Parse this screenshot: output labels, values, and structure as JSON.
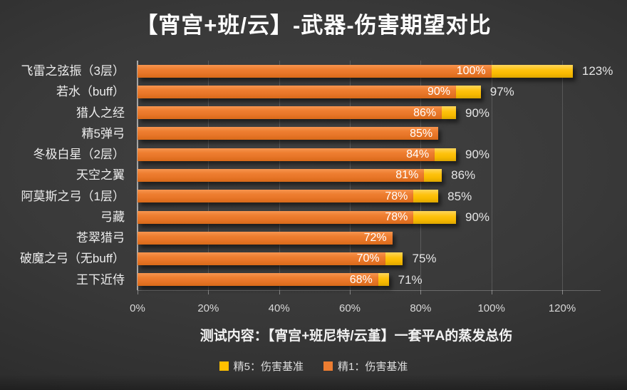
{
  "colors": {
    "orange": "#ED7D31",
    "yellow": "#FFC000"
  },
  "legend": [
    {
      "label": "精5：伤害基准",
      "color_key": "yellow"
    },
    {
      "label": "精1：伤害基准",
      "color_key": "orange"
    }
  ],
  "chart_data": {
    "type": "bar",
    "orientation": "horizontal",
    "title": "【宵宫+班/云】-武器-伤害期望对比",
    "subtitle": "测试内容：【宵宫+班尼特/云堇】一套平A的蒸发总伤",
    "categories": [
      "飞雷之弦振（3层）",
      "若水（buff）",
      "猎人之经",
      "精5弹弓",
      "冬极白星（2层）",
      "天空之翼",
      "阿莫斯之弓（1层）",
      "弓藏",
      "苍翠猎弓",
      "破魔之弓（无buff）",
      "王下近侍"
    ],
    "series": [
      {
        "name": "精1：伤害基准",
        "color_key": "orange",
        "values": [
          100,
          90,
          86,
          85,
          84,
          81,
          78,
          78,
          72,
          70,
          68
        ]
      },
      {
        "name": "精5：伤害基准",
        "color_key": "yellow",
        "values": [
          123,
          97,
          90,
          null,
          90,
          86,
          85,
          90,
          null,
          75,
          71
        ]
      }
    ],
    "value_suffix": "%",
    "x_tick_labels": [
      "0%",
      "20%",
      "40%",
      "60%",
      "80%",
      "100%",
      "120%"
    ],
    "xlim": [
      0,
      120
    ],
    "grid": "vertical",
    "legend_position": "bottom"
  }
}
